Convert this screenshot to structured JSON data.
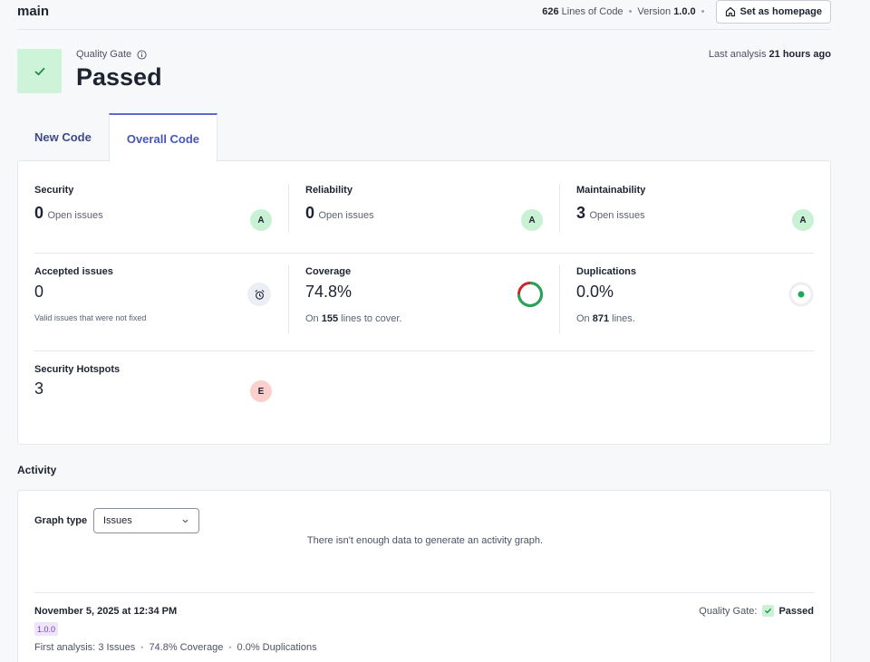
{
  "header": {
    "branch": "main",
    "loc_value": "626",
    "loc_label": "Lines of Code",
    "version_label": "Version",
    "version_value": "1.0.0",
    "homepage_button": "Set as homepage"
  },
  "quality_gate": {
    "label": "Quality Gate",
    "status": "Passed",
    "last_analysis_prefix": "Last analysis",
    "last_analysis_value": "21 hours ago"
  },
  "tabs": [
    {
      "label": "New Code",
      "active": false
    },
    {
      "label": "Overall Code",
      "active": true
    }
  ],
  "metrics": {
    "security": {
      "title": "Security",
      "value": "0",
      "sub": "Open issues",
      "grade": "A"
    },
    "reliability": {
      "title": "Reliability",
      "value": "0",
      "sub": "Open issues",
      "grade": "A"
    },
    "maintainability": {
      "title": "Maintainability",
      "value": "3",
      "sub": "Open issues",
      "grade": "A"
    },
    "accepted": {
      "title": "Accepted issues",
      "value": "0",
      "note": "Valid issues that were not fixed"
    },
    "coverage": {
      "title": "Coverage",
      "value": "74.8%",
      "percent": 74.8,
      "prefix": "On",
      "lines": "155",
      "suffix": "lines to cover."
    },
    "duplications": {
      "title": "Duplications",
      "value": "0.0%",
      "prefix": "On",
      "lines": "871",
      "suffix": "lines."
    },
    "hotspots": {
      "title": "Security Hotspots",
      "value": "3",
      "grade": "E"
    }
  },
  "activity": {
    "title": "Activity",
    "graph_type_label": "Graph type",
    "graph_type_value": "Issues",
    "empty_message": "There isn't enough data to generate an activity graph.",
    "entry": {
      "date": "November 5, 2025 at 12:34 PM",
      "version": "1.0.0",
      "gate_label": "Quality Gate:",
      "gate_status": "Passed",
      "summary_prefix": "First analysis:",
      "summary_items": [
        "3 Issues",
        "74.8% Coverage",
        "0.0% Duplications"
      ]
    }
  },
  "colors": {
    "accent": "#4755b8",
    "passed_bg": "#cdf3d9",
    "passed_check": "#1e8a4c",
    "grade_a": "#c9f1d4",
    "grade_e": "#fbcfcb",
    "coverage_good": "#22a65a",
    "coverage_bad": "#c62828"
  }
}
